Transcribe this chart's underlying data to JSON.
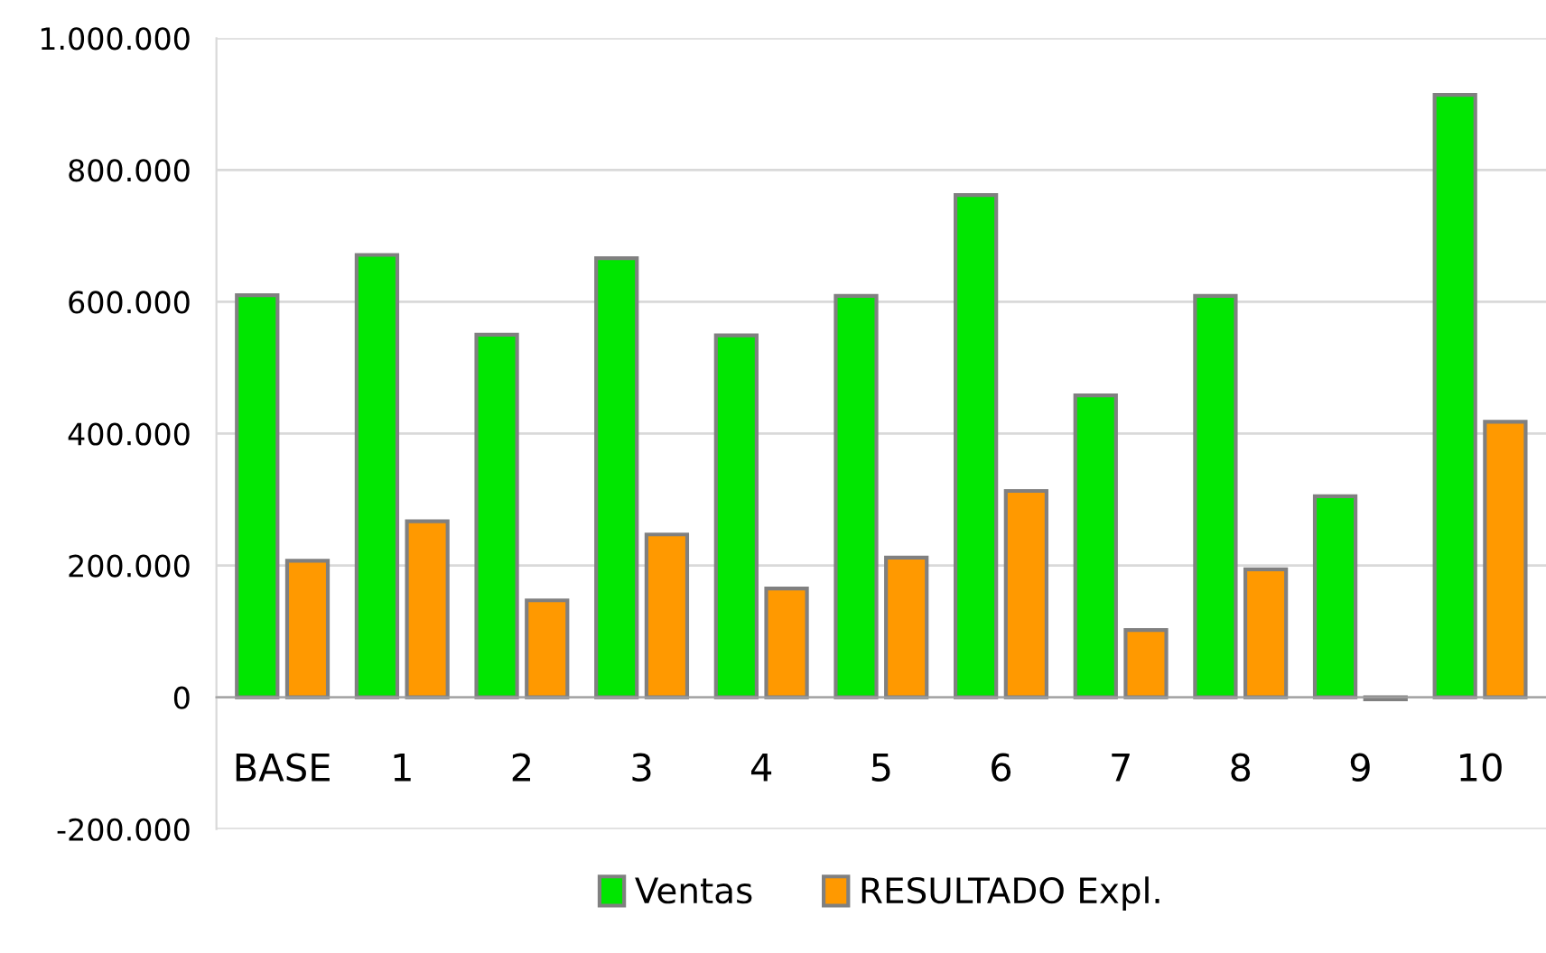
{
  "chart_data": {
    "type": "bar",
    "categories": [
      "BASE",
      "1",
      "2",
      "3",
      "4",
      "5",
      "6",
      "7",
      "8",
      "9",
      "10"
    ],
    "series": [
      {
        "name": "Ventas",
        "color": "#00e600",
        "values": [
          610000,
          671000,
          550000,
          666000,
          549000,
          609000,
          762000,
          458000,
          609000,
          305000,
          914000
        ]
      },
      {
        "name": "RESULTADO Expl.",
        "color": "#ff9900",
        "values": [
          207000,
          267000,
          147000,
          247000,
          165000,
          212000,
          313000,
          102000,
          194000,
          -3000,
          418000
        ]
      }
    ],
    "ylim": [
      -200000,
      1000000
    ],
    "yticks": [
      {
        "value": -200000,
        "label": "-200.000"
      },
      {
        "value": 0,
        "label": "0"
      },
      {
        "value": 200000,
        "label": "200.000"
      },
      {
        "value": 400000,
        "label": "400.000"
      },
      {
        "value": 600000,
        "label": "600.000"
      },
      {
        "value": 800000,
        "label": "800.000"
      },
      {
        "value": 1000000,
        "label": "1.000.000"
      }
    ],
    "grid": "y",
    "legend": "bottom"
  }
}
